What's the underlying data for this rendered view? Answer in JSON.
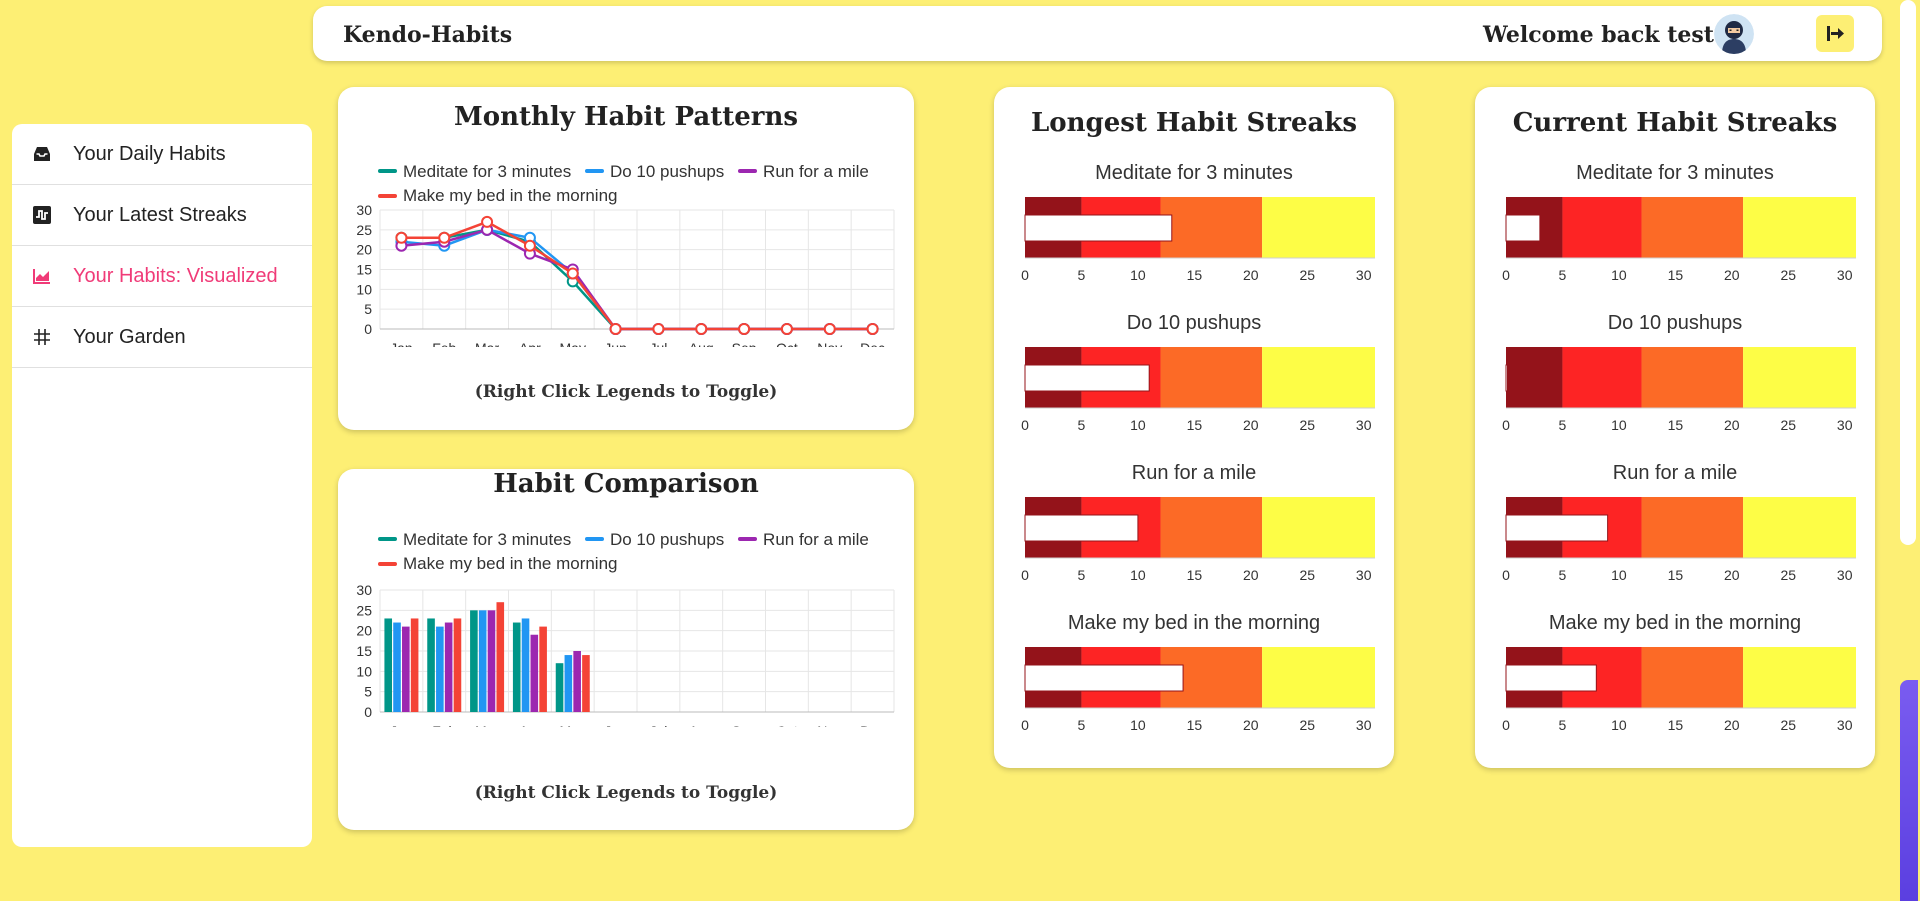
{
  "header": {
    "app_title": "Kendo-Habits",
    "welcome": "Welcome back test!"
  },
  "sidebar": {
    "items": [
      {
        "label": "Your Daily Habits",
        "icon": "inbox-icon"
      },
      {
        "label": "Your Latest Streaks",
        "icon": "streak-icon"
      },
      {
        "label": "Your Habits: Visualized",
        "icon": "chart-icon",
        "active": true
      },
      {
        "label": "Your Garden",
        "icon": "grid-icon"
      }
    ]
  },
  "colors": {
    "meditate": "#009688",
    "pushups": "#2196f3",
    "run": "#9c27b0",
    "bed": "#f44336",
    "active_nav": "#f03b78",
    "band_1": "#94131a",
    "band_2": "#fd2424",
    "band_3": "#fc6a26",
    "band_4": "#fdfd46"
  },
  "monthly": {
    "title": "Monthly Habit Patterns",
    "note": "(Right Click Legends to Toggle)"
  },
  "comparison": {
    "title": "Habit Comparison",
    "note": "(Right Click Legends to Toggle)"
  },
  "longest": {
    "title": "Longest Habit Streaks"
  },
  "current": {
    "title": "Current Habit Streaks"
  },
  "chart_data": [
    {
      "type": "line",
      "title": "Monthly Habit Patterns",
      "categories": [
        "Jan",
        "Feb",
        "Mar",
        "Apr",
        "May",
        "Jun",
        "Jul",
        "Aug",
        "Sep",
        "Oct",
        "Nov",
        "Dec"
      ],
      "yticks": [
        "0",
        "5",
        "10",
        "15",
        "20",
        "25",
        "30"
      ],
      "ylim": [
        0,
        30
      ],
      "series": [
        {
          "name": "Meditate for 3 minutes",
          "values": [
            23,
            23,
            25,
            22,
            12,
            0,
            0,
            0,
            0,
            0,
            0,
            0
          ]
        },
        {
          "name": "Do 10 pushups",
          "values": [
            22,
            21,
            25,
            23,
            14,
            0,
            0,
            0,
            0,
            0,
            0,
            0
          ]
        },
        {
          "name": "Run for a mile",
          "values": [
            21,
            22,
            25,
            19,
            15,
            0,
            0,
            0,
            0,
            0,
            0,
            0
          ]
        },
        {
          "name": "Make my bed in the morning",
          "values": [
            23,
            23,
            27,
            21,
            14,
            0,
            0,
            0,
            0,
            0,
            0,
            0
          ]
        }
      ]
    },
    {
      "type": "bar",
      "title": "Habit Comparison",
      "categories": [
        "Jan",
        "Feb",
        "Mar",
        "Apr",
        "May",
        "Jun",
        "Jul",
        "Aug",
        "Sep",
        "Oct",
        "Nov",
        "Dec"
      ],
      "yticks": [
        "0",
        "5",
        "10",
        "15",
        "20",
        "25",
        "30"
      ],
      "ylim": [
        0,
        30
      ],
      "series": [
        {
          "name": "Meditate for 3 minutes",
          "values": [
            23,
            23,
            25,
            22,
            12,
            0,
            0,
            0,
            0,
            0,
            0,
            0
          ]
        },
        {
          "name": "Do 10 pushups",
          "values": [
            22,
            21,
            25,
            23,
            14,
            0,
            0,
            0,
            0,
            0,
            0,
            0
          ]
        },
        {
          "name": "Run for a mile",
          "values": [
            21,
            22,
            25,
            19,
            15,
            0,
            0,
            0,
            0,
            0,
            0,
            0
          ]
        },
        {
          "name": "Make my bed in the morning",
          "values": [
            23,
            23,
            27,
            21,
            14,
            0,
            0,
            0,
            0,
            0,
            0,
            0
          ]
        }
      ]
    },
    {
      "type": "bullet",
      "title": "Longest Habit Streaks",
      "xticks": [
        "0",
        "5",
        "10",
        "15",
        "20",
        "25",
        "30"
      ],
      "xlim": [
        0,
        31
      ],
      "bands": [
        5,
        12,
        21,
        31
      ],
      "items": [
        {
          "name": "Meditate for 3 minutes",
          "value": 13
        },
        {
          "name": "Do 10 pushups",
          "value": 11
        },
        {
          "name": "Run for a mile",
          "value": 10
        },
        {
          "name": "Make my bed in the morning",
          "value": 14
        }
      ]
    },
    {
      "type": "bullet",
      "title": "Current Habit Streaks",
      "xticks": [
        "0",
        "5",
        "10",
        "15",
        "20",
        "25",
        "30"
      ],
      "xlim": [
        0,
        31
      ],
      "bands": [
        5,
        12,
        21,
        31
      ],
      "items": [
        {
          "name": "Meditate for 3 minutes",
          "value": 3
        },
        {
          "name": "Do 10 pushups",
          "value": 0
        },
        {
          "name": "Run for a mile",
          "value": 9
        },
        {
          "name": "Make my bed in the morning",
          "value": 8
        }
      ]
    }
  ]
}
